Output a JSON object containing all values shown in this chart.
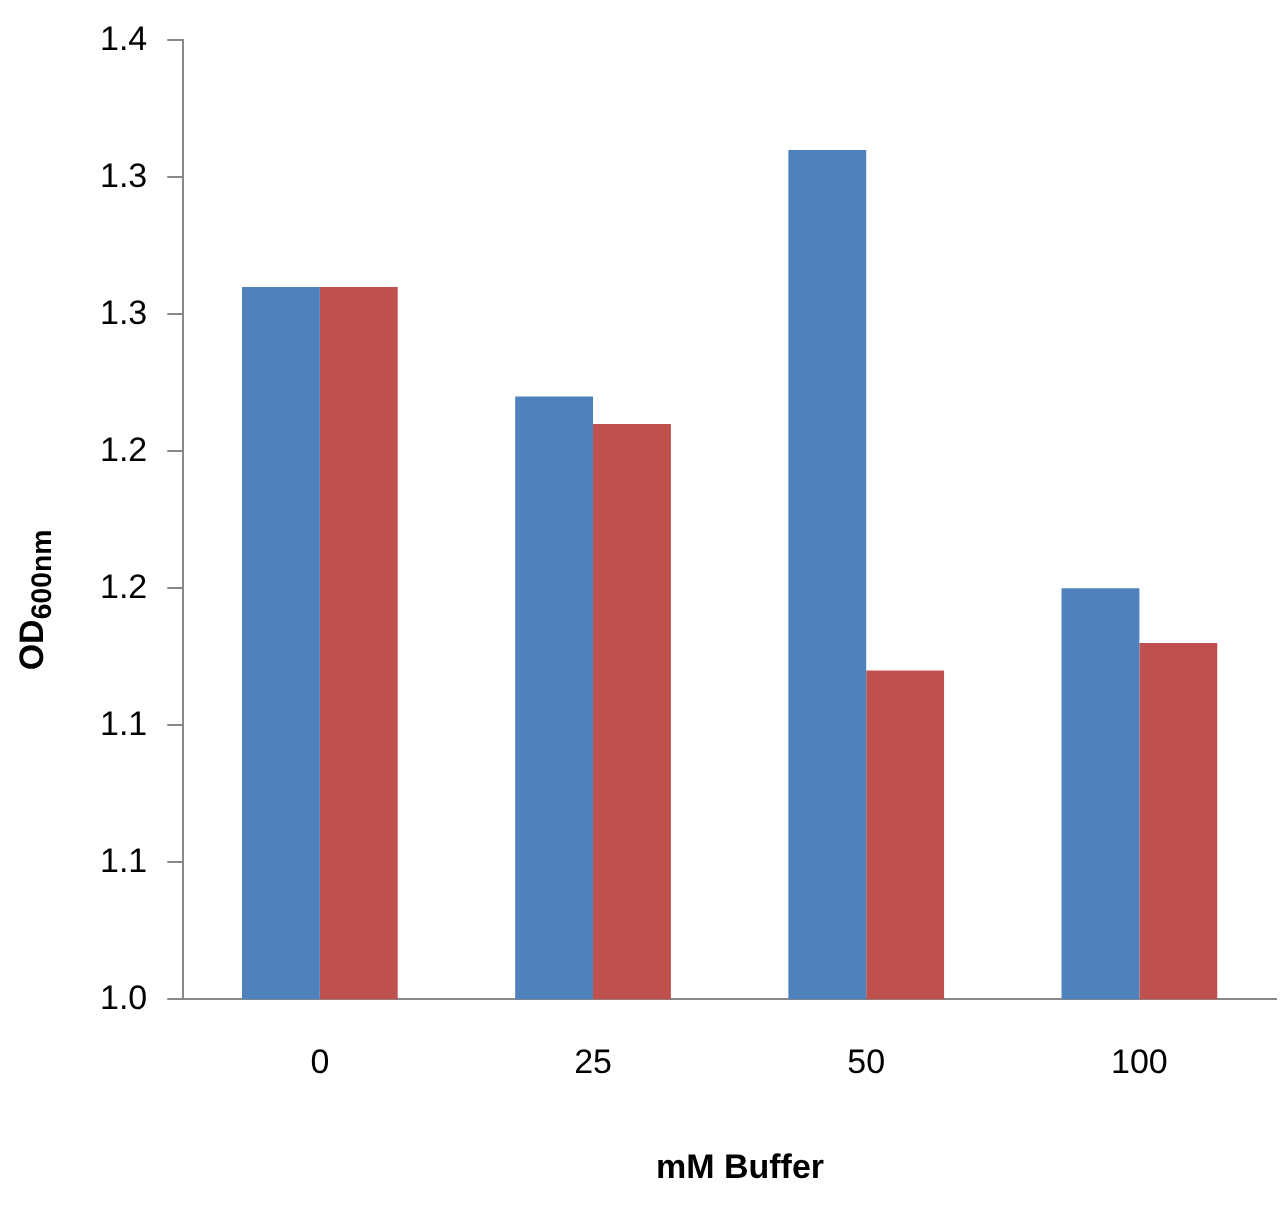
{
  "chart_data": {
    "type": "bar",
    "xlabel": "mM Buffer",
    "ylabel": "OD$_{600nm}$",
    "categories": [
      "0",
      "25",
      "50",
      "100"
    ],
    "series": [
      {
        "color": "#4f81bd",
        "values": [
          1.26,
          1.22,
          1.31,
          1.15
        ]
      },
      {
        "color": "#c0504d",
        "values": [
          1.26,
          1.21,
          1.12,
          1.13
        ]
      }
    ],
    "ylim": [
      1.0,
      1.35
    ],
    "yticks": [
      {
        "value": 1.0,
        "label": "1.0"
      },
      {
        "value": 1.05,
        "label": "1.1"
      },
      {
        "value": 1.1,
        "label": "1.1"
      },
      {
        "value": 1.15,
        "label": "1.2"
      },
      {
        "value": 1.2,
        "label": "1.2"
      },
      {
        "value": 1.25,
        "label": "1.3"
      },
      {
        "value": 1.3,
        "label": "1.3"
      },
      {
        "value": 1.35,
        "label": "1.4"
      }
    ],
    "grid": false,
    "legend": false
  }
}
